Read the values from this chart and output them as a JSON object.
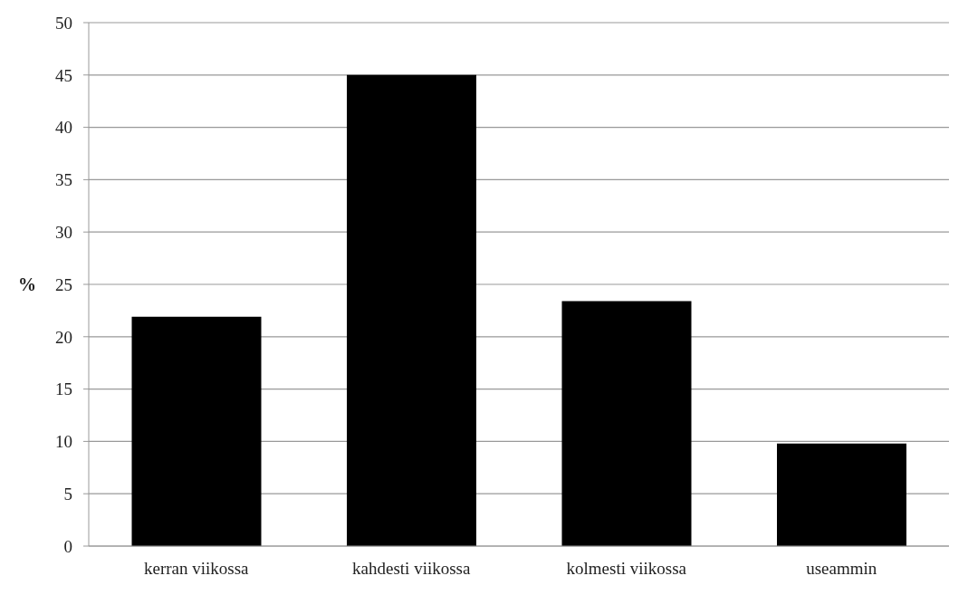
{
  "chart_data": {
    "type": "bar",
    "ylabel": "%",
    "categories": [
      "kerran viikossa",
      "kahdesti viikossa",
      "kolmesti viikossa",
      "useammin"
    ],
    "values": [
      21.9,
      45,
      23.4,
      9.8
    ],
    "color": "#000000",
    "ylim": [
      0,
      50
    ],
    "yticks": [
      0,
      5,
      10,
      15,
      20,
      25,
      30,
      35,
      40,
      45,
      50
    ],
    "grid": "y"
  }
}
